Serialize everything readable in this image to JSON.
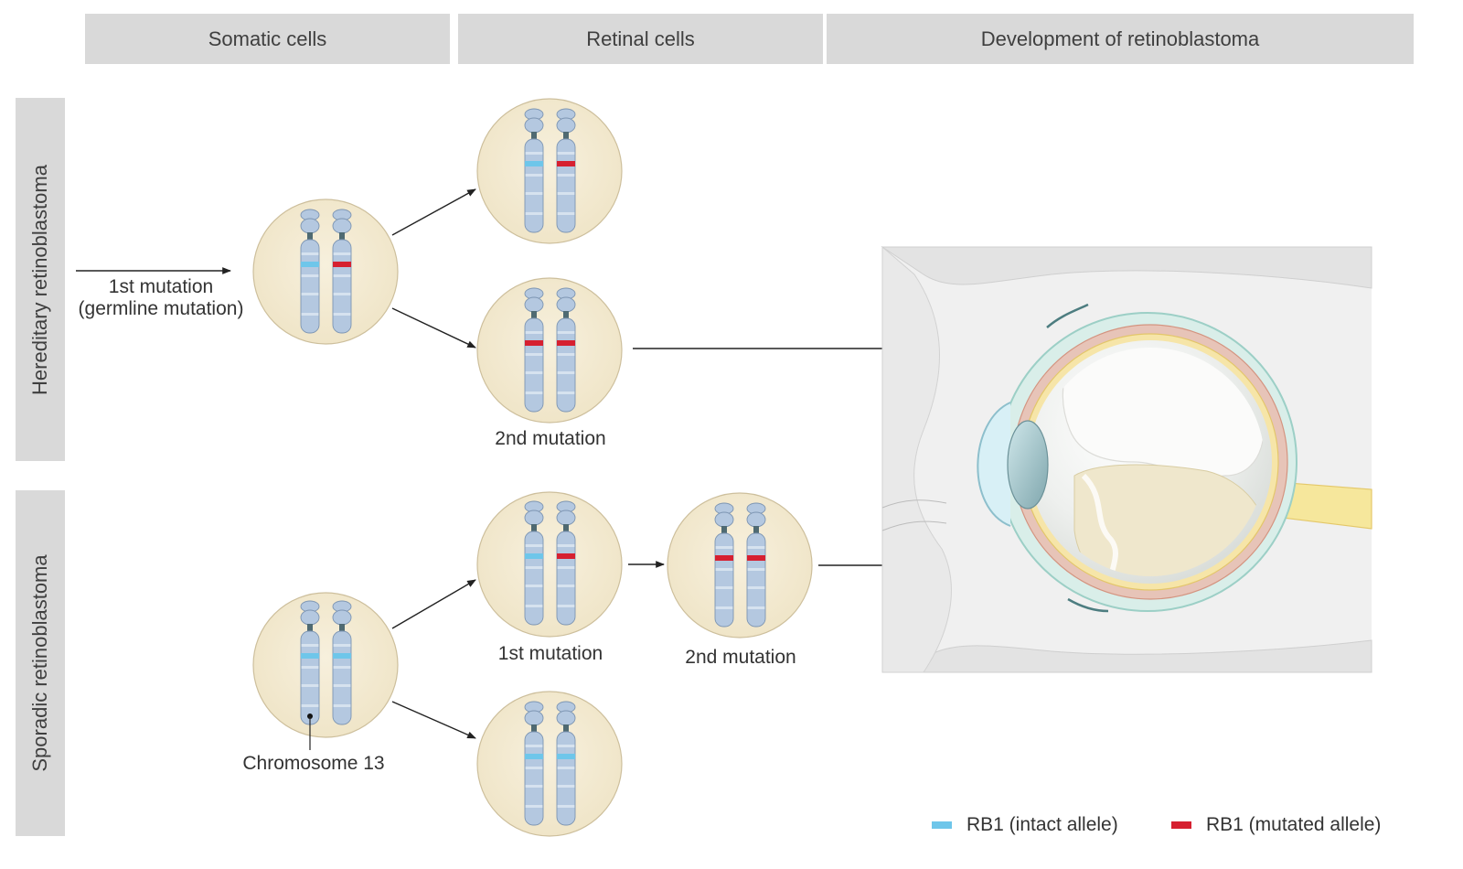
{
  "columns": {
    "somatic": "Somatic cells",
    "retinal": "Retinal cells",
    "development": "Development of retinoblastoma"
  },
  "rows": {
    "hereditary": "Hereditary retinoblastoma",
    "sporadic": "Sporadic retinoblastoma"
  },
  "labels": {
    "first_mutation_line1": "1st mutation",
    "first_mutation_line2": "(germline mutation)",
    "hereditary_second_mutation": "2nd mutation",
    "sporadic_first_mutation": "1st mutation",
    "sporadic_second_mutation": "2nd mutation",
    "chromosome": "Chromosome 13"
  },
  "legend": {
    "intact": "RB1 (intact allele)",
    "mutated": "RB1 (mutated allele)"
  },
  "colors": {
    "intact": "#6ec6ea",
    "mutated": "#d62030",
    "cell_fill": "#f3ead3",
    "chromosome": "#b4c8e0",
    "header": "#d9d9d9"
  }
}
